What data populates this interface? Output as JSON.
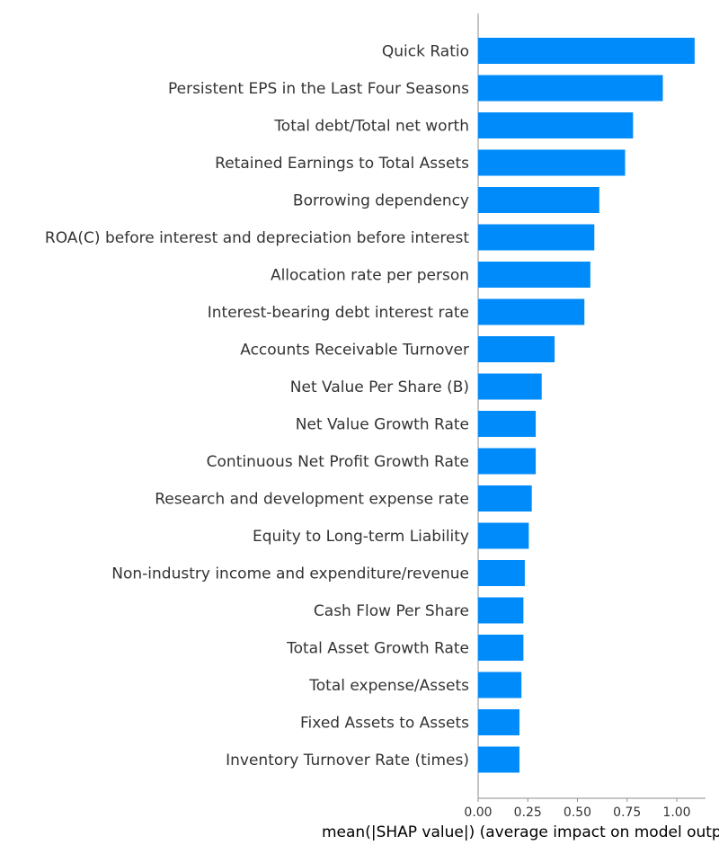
{
  "chart_data": {
    "type": "bar",
    "orientation": "horizontal",
    "title": "",
    "xlabel": "mean(|SHAP value|) (average impact on model output magnitude)",
    "ylabel": "",
    "xlim": [
      0,
      1.15
    ],
    "xticks": [
      "0.00",
      "0.25",
      "0.50",
      "0.75",
      "1.00"
    ],
    "xtick_values": [
      0,
      0.25,
      0.5,
      0.75,
      1.0
    ],
    "grid": false,
    "bar_color": "#008bfb",
    "categories": [
      "Quick Ratio",
      "Persistent EPS in the Last Four Seasons",
      "Total debt/Total net worth",
      "Retained Earnings to Total Assets",
      "Borrowing dependency",
      "ROA(C) before interest and depreciation before interest",
      "Allocation rate per person",
      "Interest-bearing debt interest rate",
      "Accounts Receivable Turnover",
      "Net Value Per Share (B)",
      "Net Value Growth Rate",
      "Continuous Net Profit Growth Rate",
      "Research and development expense rate",
      "Equity to Long-term Liability",
      "Non-industry income and expenditure/revenue",
      "Cash Flow Per Share",
      "Total Asset Growth Rate",
      "Total expense/Assets",
      "Fixed Assets to Assets",
      "Inventory Turnover Rate (times)"
    ],
    "values": [
      1.09,
      0.93,
      0.78,
      0.74,
      0.61,
      0.585,
      0.565,
      0.535,
      0.385,
      0.32,
      0.29,
      0.29,
      0.27,
      0.255,
      0.235,
      0.228,
      0.228,
      0.218,
      0.208,
      0.208
    ]
  }
}
